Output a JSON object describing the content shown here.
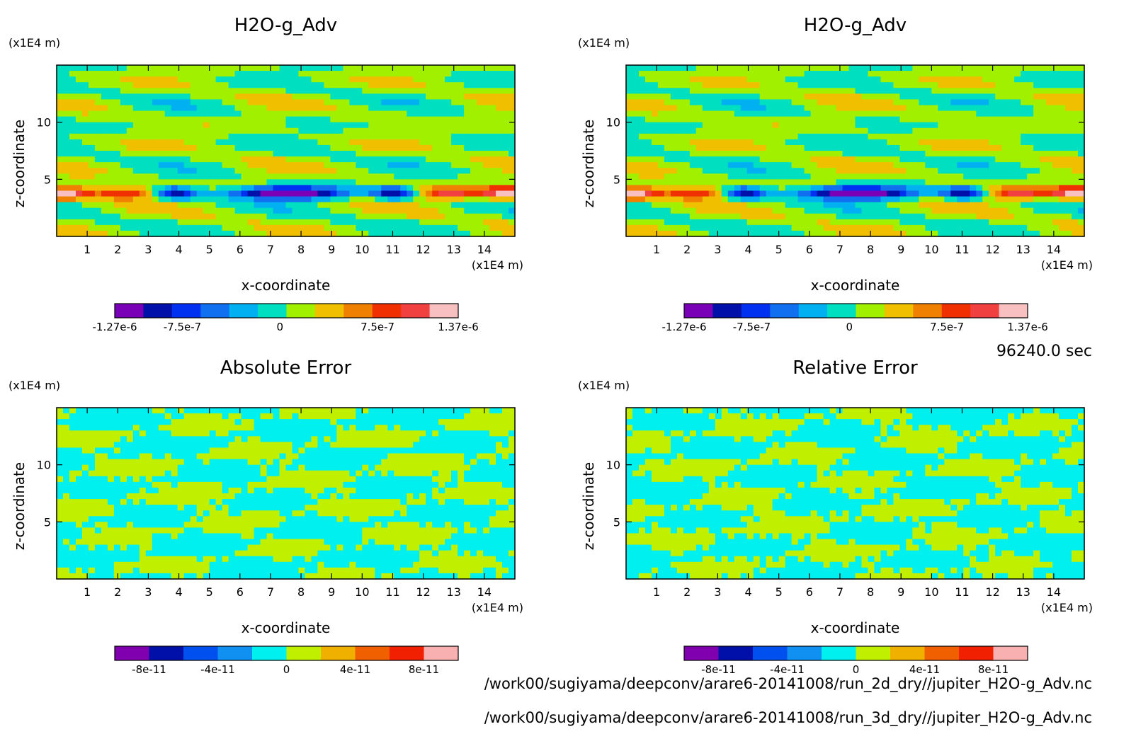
{
  "figure": {
    "time_label": "96240.0 sec",
    "file_paths": [
      "/work00/sugiyama/deepconv/arare6-20141008/run_2d_dry//jupiter_H2O-g_Adv.nc",
      "/work00/sugiyama/deepconv/arare6-20141008/run_3d_dry//jupiter_H2O-g_Adv.nc"
    ]
  },
  "chart_data": [
    {
      "type": "heatmap",
      "title": "H2O-g_Adv",
      "xlabel": "x-coordinate",
      "ylabel": "z-coordinate",
      "x_unit": "(x1E4 m)",
      "y_unit": "(x1E4 m)",
      "xlim": [
        0,
        15
      ],
      "ylim": [
        0,
        15
      ],
      "x_ticks": [
        "1",
        "2",
        "3",
        "4",
        "5",
        "6",
        "7",
        "8",
        "9",
        "10",
        "11",
        "12",
        "13",
        "14"
      ],
      "y_ticks": [
        "5",
        "10"
      ],
      "colorbar": {
        "range": [
          -1.27e-06,
          1.37e-06
        ],
        "labels": [
          "-1.27e-6",
          "-7.5e-7",
          "0",
          "7.5e-7",
          "1.37e-6"
        ],
        "label_values": [
          -1.27e-06,
          -7.5e-07,
          0,
          7.5e-07,
          1.37e-06
        ],
        "colors": [
          "#7a00b8",
          "#0010a8",
          "#0030f0",
          "#1070f0",
          "#00b0f0",
          "#00e0c0",
          "#a0f000",
          "#f0c000",
          "#f08000",
          "#f03000",
          "#f04040",
          "#f8c0c0"
        ]
      },
      "pattern": "advection"
    },
    {
      "type": "heatmap",
      "title": "H2O-g_Adv",
      "xlabel": "x-coordinate",
      "ylabel": "z-coordinate",
      "x_unit": "(x1E4 m)",
      "y_unit": "(x1E4 m)",
      "xlim": [
        0,
        15
      ],
      "ylim": [
        0,
        15
      ],
      "x_ticks": [
        "1",
        "2",
        "3",
        "4",
        "5",
        "6",
        "7",
        "8",
        "9",
        "10",
        "11",
        "12",
        "13",
        "14"
      ],
      "y_ticks": [
        "5",
        "10"
      ],
      "colorbar": {
        "range": [
          -1.27e-06,
          1.37e-06
        ],
        "labels": [
          "-1.27e-6",
          "-7.5e-7",
          "0",
          "7.5e-7",
          "1.37e-6"
        ],
        "label_values": [
          -1.27e-06,
          -7.5e-07,
          0,
          7.5e-07,
          1.37e-06
        ],
        "colors": [
          "#7a00b8",
          "#0010a8",
          "#0030f0",
          "#1070f0",
          "#00b0f0",
          "#00e0c0",
          "#a0f000",
          "#f0c000",
          "#f08000",
          "#f03000",
          "#f04040",
          "#f8c0c0"
        ]
      },
      "pattern": "advection"
    },
    {
      "type": "heatmap",
      "title": "Absolute Error",
      "xlabel": "x-coordinate",
      "ylabel": "z-coordinate",
      "x_unit": "(x1E4 m)",
      "y_unit": "(x1E4 m)",
      "xlim": [
        0,
        15
      ],
      "ylim": [
        0,
        15
      ],
      "x_ticks": [
        "1",
        "2",
        "3",
        "4",
        "5",
        "6",
        "7",
        "8",
        "9",
        "10",
        "11",
        "12",
        "13",
        "14"
      ],
      "y_ticks": [
        "5",
        "10"
      ],
      "colorbar": {
        "range": [
          -1e-10,
          1e-10
        ],
        "labels": [
          "-8e-11",
          "-4e-11",
          "0",
          "4e-11",
          "8e-11"
        ],
        "label_values": [
          -8e-11,
          -4e-11,
          0,
          4e-11,
          8e-11
        ],
        "colors": [
          "#8000b0",
          "#0010a8",
          "#0050f0",
          "#1090f0",
          "#00f0f0",
          "#c0f000",
          "#f0b000",
          "#f06000",
          "#f02000",
          "#f8b0b0"
        ]
      },
      "pattern": "error",
      "dominant_colors": [
        "#00f0f0",
        "#c0f000"
      ]
    },
    {
      "type": "heatmap",
      "title": "Relative Error",
      "xlabel": "x-coordinate",
      "ylabel": "z-coordinate",
      "x_unit": "(x1E4 m)",
      "y_unit": "(x1E4 m)",
      "xlim": [
        0,
        15
      ],
      "ylim": [
        0,
        15
      ],
      "x_ticks": [
        "1",
        "2",
        "3",
        "4",
        "5",
        "6",
        "7",
        "8",
        "9",
        "10",
        "11",
        "12",
        "13",
        "14"
      ],
      "y_ticks": [
        "5",
        "10"
      ],
      "colorbar": {
        "range": [
          -1e-10,
          1e-10
        ],
        "labels": [
          "-8e-11",
          "-4e-11",
          "0",
          "4e-11",
          "8e-11"
        ],
        "label_values": [
          -8e-11,
          -4e-11,
          0,
          4e-11,
          8e-11
        ],
        "colors": [
          "#8000b0",
          "#0010a8",
          "#0050f0",
          "#1090f0",
          "#00f0f0",
          "#c0f000",
          "#f0b000",
          "#f06000",
          "#f02000",
          "#f8b0b0"
        ]
      },
      "pattern": "error",
      "dominant_colors": [
        "#00f0f0",
        "#c0f000"
      ]
    }
  ]
}
